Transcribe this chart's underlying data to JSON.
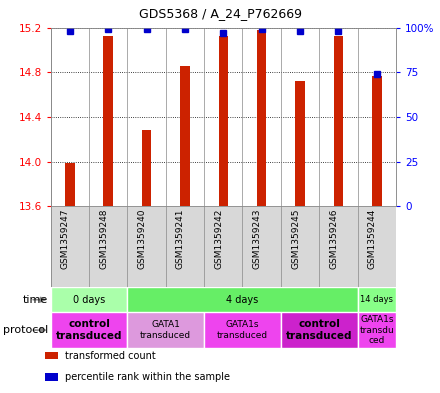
{
  "title": "GDS5368 / A_24_P762669",
  "samples": [
    "GSM1359247",
    "GSM1359248",
    "GSM1359240",
    "GSM1359241",
    "GSM1359242",
    "GSM1359243",
    "GSM1359245",
    "GSM1359246",
    "GSM1359244"
  ],
  "bar_values": [
    13.99,
    15.12,
    14.28,
    14.86,
    15.12,
    15.18,
    14.72,
    15.12,
    14.77
  ],
  "percentile_values": [
    98,
    99,
    99,
    99,
    97,
    99,
    98,
    98,
    74
  ],
  "ylim": [
    13.6,
    15.2
  ],
  "yticks_left": [
    13.6,
    14.0,
    14.4,
    14.8,
    15.2
  ],
  "yticks_right": [
    0,
    25,
    50,
    75,
    100
  ],
  "bar_color": "#cc2200",
  "dot_color": "#0000cc",
  "sample_bg": "#d8d8d8",
  "time_groups": [
    {
      "label": "0 days",
      "start": 0,
      "end": 2,
      "color": "#aaffaa"
    },
    {
      "label": "4 days",
      "start": 2,
      "end": 8,
      "color": "#66ee66"
    },
    {
      "label": "14 days",
      "start": 8,
      "end": 9,
      "color": "#88ff88"
    }
  ],
  "protocol_groups": [
    {
      "label": "control\ntransduced",
      "start": 0,
      "end": 2,
      "color": "#ee44ee",
      "bold": true,
      "small": false
    },
    {
      "label": "GATA1\ntransduced",
      "start": 2,
      "end": 4,
      "color": "#dd99dd",
      "bold": false,
      "small": true
    },
    {
      "label": "GATA1s\ntransduced",
      "start": 4,
      "end": 6,
      "color": "#ee44ee",
      "bold": false,
      "small": true
    },
    {
      "label": "control\ntransduced",
      "start": 6,
      "end": 8,
      "color": "#cc22cc",
      "bold": true,
      "small": false
    },
    {
      "label": "GATA1s\ntransdu\nced",
      "start": 8,
      "end": 9,
      "color": "#ee44ee",
      "bold": false,
      "small": true
    }
  ],
  "legend_items": [
    {
      "label": "transformed count",
      "color": "#cc2200"
    },
    {
      "label": "percentile rank within the sample",
      "color": "#0000cc"
    }
  ]
}
